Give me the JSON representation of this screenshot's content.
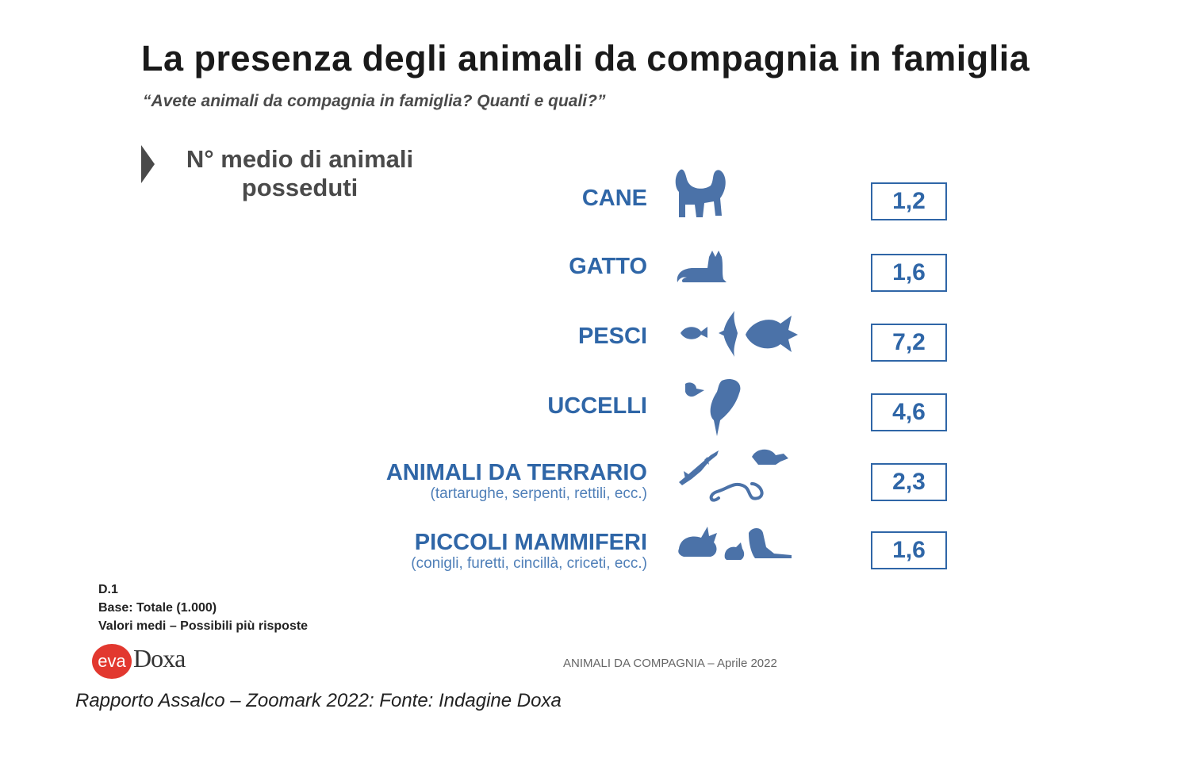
{
  "title": "La presenza degli animali da compagnia in famiglia",
  "subtitle": "“Avete animali da compagnia in famiglia? Quanti e quali?”",
  "section_title_line1": "N° medio di animali",
  "section_title_line2": "posseduti",
  "colors": {
    "accent": "#2f66a7",
    "icon": "#4b72a8",
    "logo": "#e2382f"
  },
  "rows": [
    {
      "label": "CANE",
      "sub": "",
      "value": "1,2",
      "icon": "dog-icon"
    },
    {
      "label": "GATTO",
      "sub": "",
      "value": "1,6",
      "icon": "cat-icon"
    },
    {
      "label": "PESCI",
      "sub": "",
      "value": "7,2",
      "icon": "fish-icon"
    },
    {
      "label": "UCCELLI",
      "sub": "",
      "value": "4,6",
      "icon": "bird-icon"
    },
    {
      "label": "ANIMALI DA TERRARIO",
      "sub": "(tartarughe, serpenti, rettili, ecc.)",
      "value": "2,3",
      "icon": "reptile-icon"
    },
    {
      "label": "PICCOLI MAMMIFERI",
      "sub": "(conigli, furetti, cincillà, criceti, ecc.)",
      "value": "1,6",
      "icon": "small-mammal-icon"
    }
  ],
  "chart_data": {
    "type": "table",
    "title": "La presenza degli animali da compagnia in famiglia",
    "subtitle": "“Avete animali da compagnia in famiglia? Quanti e quali?”",
    "categories": [
      "CANE",
      "GATTO",
      "PESCI",
      "UCCELLI",
      "ANIMALI DA TERRARIO",
      "PICCOLI MAMMIFERI"
    ],
    "values": [
      1.2,
      1.6,
      7.2,
      4.6,
      2.3,
      1.6
    ]
  },
  "notes": {
    "line1": "D.1",
    "line2": "Base: Totale (1.000)",
    "line3": "Valori medi – Possibili più risposte"
  },
  "logo": {
    "mark": "eva",
    "name": "Doxa"
  },
  "footer_right": "ANIMALI DA COMPAGNIA – Aprile 2022",
  "caption": "Rapporto Assalco – Zoomark 2022: Fonte: Indagine Doxa"
}
